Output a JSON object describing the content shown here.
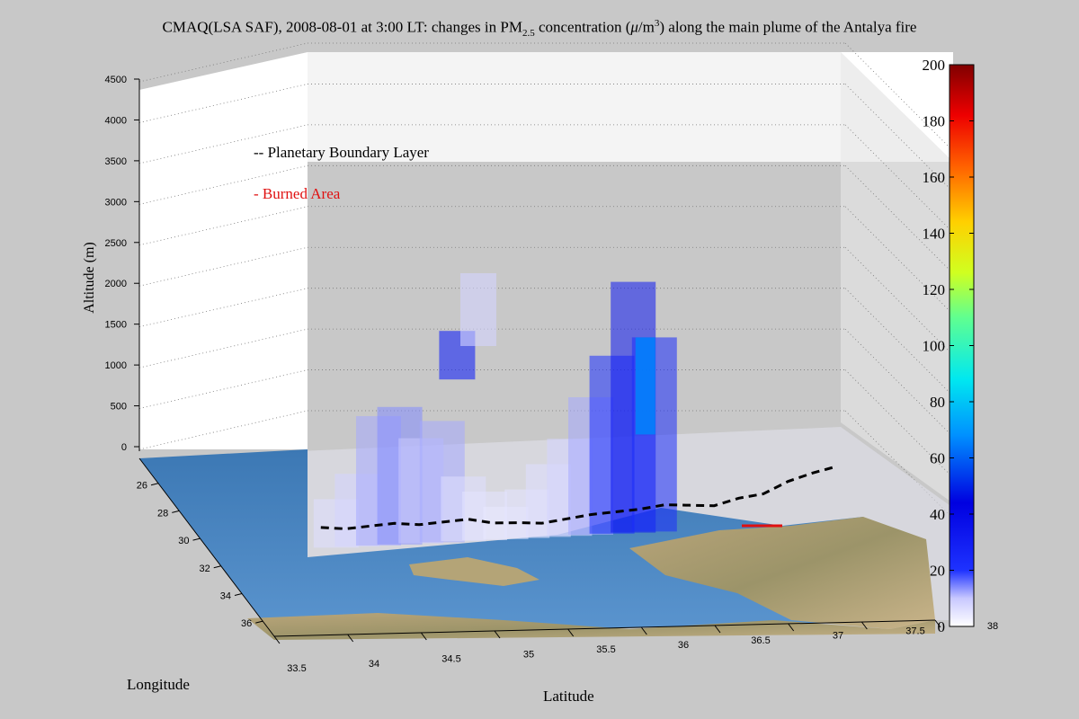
{
  "chart_data": {
    "type": "3d-volume",
    "title": {
      "prefix": "CMAQ(LSA SAF), 2008-08-01 at 3:00 LT: changes in PM",
      "sub": "2.5",
      "middle": " concentration (",
      "mu": "μ",
      "unit": "/m",
      "sup": "3",
      "suffix": ") along the main plume of the Antalya fire"
    },
    "zlabel": "Altitude (m)",
    "xlabel": "Latitude",
    "ylabel": "Longitude",
    "z_ticks": [
      "0",
      "500",
      "1000",
      "1500",
      "2000",
      "2500",
      "3000",
      "3500",
      "4000",
      "4500"
    ],
    "lat_ticks": [
      "33.5",
      "34",
      "34.5",
      "35",
      "35.5",
      "36",
      "36.5",
      "37",
      "37.5",
      "38"
    ],
    "lon_ticks": [
      "26",
      "28",
      "30",
      "32",
      "34",
      "36"
    ],
    "legend": {
      "pbl": "-- Planetary Boundary Layer",
      "burned": "- Burned Area"
    },
    "colorbar": {
      "ticks": [
        "0",
        "20",
        "40",
        "60",
        "80",
        "100",
        "120",
        "140",
        "160",
        "180",
        "200"
      ],
      "range": [
        0,
        200
      ],
      "colormap": "jet-white"
    },
    "columns": [
      {
        "lat": 33.6,
        "top": 600,
        "value": 6
      },
      {
        "lat": 33.8,
        "top": 900,
        "value": 8
      },
      {
        "lat": 34.0,
        "top": 1600,
        "value": 12
      },
      {
        "lat": 34.2,
        "top": 1700,
        "value": 14
      },
      {
        "lat": 34.4,
        "top": 1300,
        "value": 10
      },
      {
        "lat": 34.6,
        "top": 1500,
        "value": 12
      },
      {
        "lat": 34.8,
        "top": 800,
        "value": 6
      },
      {
        "lat": 35.0,
        "top": 600,
        "value": 5
      },
      {
        "lat": 35.2,
        "top": 400,
        "value": 4
      },
      {
        "lat": 35.4,
        "top": 600,
        "value": 5
      },
      {
        "lat": 35.6,
        "top": 900,
        "value": 6
      },
      {
        "lat": 35.8,
        "top": 1200,
        "value": 8
      },
      {
        "lat": 36.0,
        "top": 1700,
        "value": 12
      },
      {
        "lat": 36.2,
        "top": 2200,
        "value": 20
      },
      {
        "lat": 36.4,
        "top": 3100,
        "value": 32
      },
      {
        "lat": 36.6,
        "top": 2400,
        "value": 22
      }
    ],
    "elevated_blocks": [
      {
        "lat": 34.8,
        "bottom": 2000,
        "top": 2600,
        "value": 26
      },
      {
        "lat": 35.0,
        "bottom": 2400,
        "top": 3300,
        "value": 8
      }
    ],
    "hotspot": {
      "lat": 36.6,
      "bottom": 1200,
      "top": 2400,
      "value": 66
    },
    "pbl_heights": [
      250,
      220,
      240,
      260,
      230,
      250,
      270,
      210,
      200,
      180,
      220,
      260,
      280,
      300,
      340,
      320,
      300,
      380,
      420,
      560,
      650,
      720
    ]
  }
}
